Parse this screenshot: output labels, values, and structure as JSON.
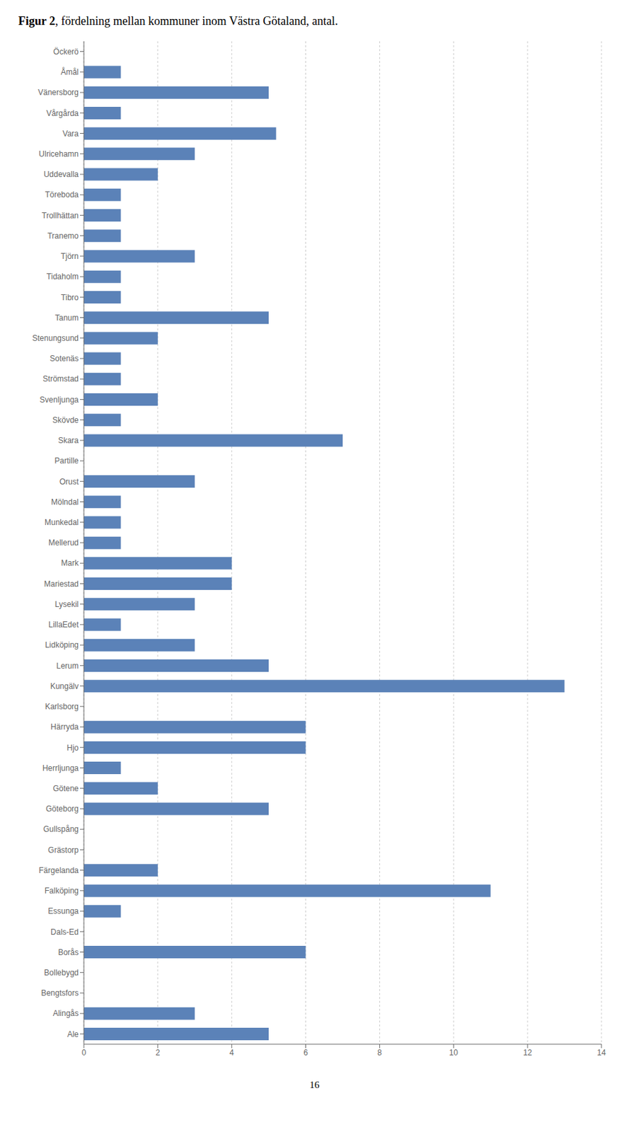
{
  "chart_data": {
    "type": "bar",
    "orientation": "horizontal",
    "title": "Figur 2, fördelning mellan kommuner inom Västra Götaland, antal.",
    "categories": [
      "Öckerö",
      "Åmål",
      "Vänersborg",
      "Vårgårda",
      "Vara",
      "Ulricehamn",
      "Uddevalla",
      "Töreboda",
      "Trollhättan",
      "Tranemo",
      "Tjörn",
      "Tidaholm",
      "Tibro",
      "Tanum",
      "Stenungsund",
      "Sotenäs",
      "Strömstad",
      "Svenljunga",
      "Skövde",
      "Skara",
      "Partille",
      "Orust",
      "Mölndal",
      "Munkedal",
      "Mellerud",
      "Mark",
      "Mariestad",
      "Lysekil",
      "LillaEdet",
      "Lidköping",
      "Lerum",
      "Kungälv",
      "Karlsborg",
      "Härryda",
      "Hjo",
      "Herrljunga",
      "Götene",
      "Göteborg",
      "Gullspång",
      "Grästorp",
      "Färgelanda",
      "Falköping",
      "Essunga",
      "Dals-Ed",
      "Borås",
      "Bollebygd",
      "Bengtsfors",
      "Alingås",
      "Ale"
    ],
    "values": [
      0,
      1,
      5,
      1,
      5.2,
      3,
      2,
      1,
      1,
      1,
      3,
      1,
      1,
      5,
      2,
      1,
      1,
      2,
      1,
      7,
      0,
      3,
      1,
      1,
      1,
      4,
      4,
      3,
      1,
      3,
      5,
      13,
      0,
      6,
      6,
      1,
      2,
      5,
      0,
      0,
      2,
      11,
      1,
      0,
      6,
      0,
      0,
      3,
      5
    ],
    "color": "#5b82b8",
    "xlim": [
      0,
      14
    ],
    "xticks": [
      0,
      2,
      4,
      6,
      8,
      10,
      12,
      14
    ],
    "grid": true,
    "annotations": [
      "16"
    ]
  }
}
